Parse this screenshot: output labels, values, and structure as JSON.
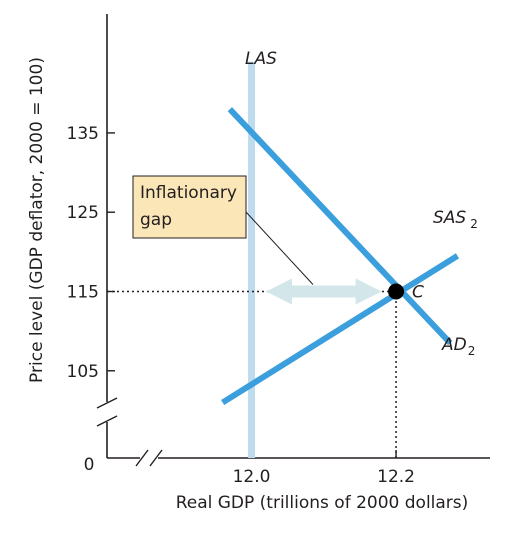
{
  "chart_data": {
    "type": "line",
    "xlabel": "Real GDP (trillions of 2000 dollars)",
    "ylabel": "Price level (GDP deflator, 2000 = 100)",
    "x_ticks": [
      "12.0",
      "12.2"
    ],
    "x_tick_values": [
      12.0,
      12.2
    ],
    "y_ticks": [
      "105",
      "115",
      "125",
      "135"
    ],
    "y_tick_values": [
      105,
      115,
      125,
      135
    ],
    "origin_label": "0",
    "xlim": [
      11.8,
      12.33
    ],
    "ylim": [
      94,
      150
    ],
    "axis_breaks": [
      "x",
      "y"
    ],
    "grid": false,
    "series": [
      {
        "name": "LAS",
        "color": "#bfdcef",
        "x": [
          12.0,
          12.0
        ],
        "y": [
          94,
          144
        ]
      },
      {
        "name": "SAS",
        "subscript": "2",
        "color": "#3a9fdc",
        "x": [
          11.96,
          12.285
        ],
        "y": [
          101,
          119.5
        ]
      },
      {
        "name": "AD",
        "subscript": "2",
        "color": "#3a9fdc",
        "x": [
          11.97,
          12.275
        ],
        "y": [
          138,
          108.5
        ]
      }
    ],
    "equilibrium": {
      "label": "C",
      "x": 12.2,
      "y": 115
    },
    "guides": [
      {
        "orientation": "horizontal",
        "y": 115,
        "x_from": 11.8,
        "x_to": 12.2
      },
      {
        "orientation": "vertical",
        "x": 12.2,
        "y_from": 94,
        "y_to": 115
      }
    ],
    "gap_arrow": {
      "y": 115,
      "x_from": 12.02,
      "x_to": 12.18,
      "color": "#d3e6ea"
    },
    "annotation": {
      "lines": [
        "Inflationary",
        "gap"
      ],
      "fill": "#fbe6b8",
      "target_x": 12.085,
      "target_y": 115
    }
  }
}
